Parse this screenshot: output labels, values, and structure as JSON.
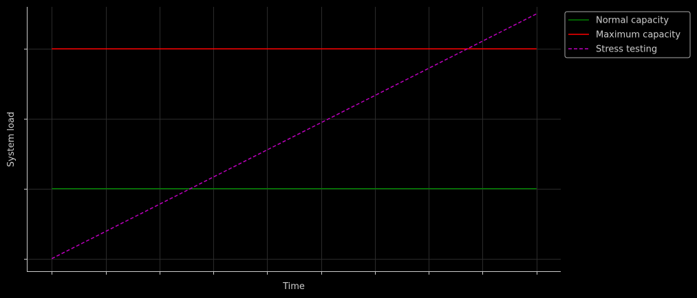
{
  "chart_data": {
    "type": "line",
    "title": "",
    "xlabel": "Time",
    "ylabel": "System load",
    "x": [
      0,
      1,
      2,
      3,
      4,
      5,
      6,
      7,
      8,
      9
    ],
    "x_tick_labels": [],
    "y_tick_labels": [],
    "xlim": [
      -0.45,
      9.45
    ],
    "ylim": [
      -0.18,
      3.6
    ],
    "grid": true,
    "legend_position": "outside-top-right",
    "series": [
      {
        "name": "Normal capacity",
        "color": "#008000",
        "linestyle": "solid",
        "values": [
          1,
          1,
          1,
          1,
          1,
          1,
          1,
          1,
          1,
          1
        ]
      },
      {
        "name": "Maximum capacity",
        "color": "#ff0000",
        "linestyle": "solid",
        "values": [
          3,
          3,
          3,
          3,
          3,
          3,
          3,
          3,
          3,
          3
        ]
      },
      {
        "name": "Stress testing",
        "color": "#bf00bf",
        "linestyle": "dashed",
        "values": [
          0,
          0.3889,
          0.7778,
          1.1667,
          1.5556,
          1.9444,
          2.3333,
          2.7222,
          3.1111,
          3.5
        ]
      }
    ]
  },
  "theme": {
    "background": "#000000",
    "axis_color": "#cccccc",
    "grid_color": "#2b2b2b",
    "legend_border": "#aaaaaa"
  }
}
